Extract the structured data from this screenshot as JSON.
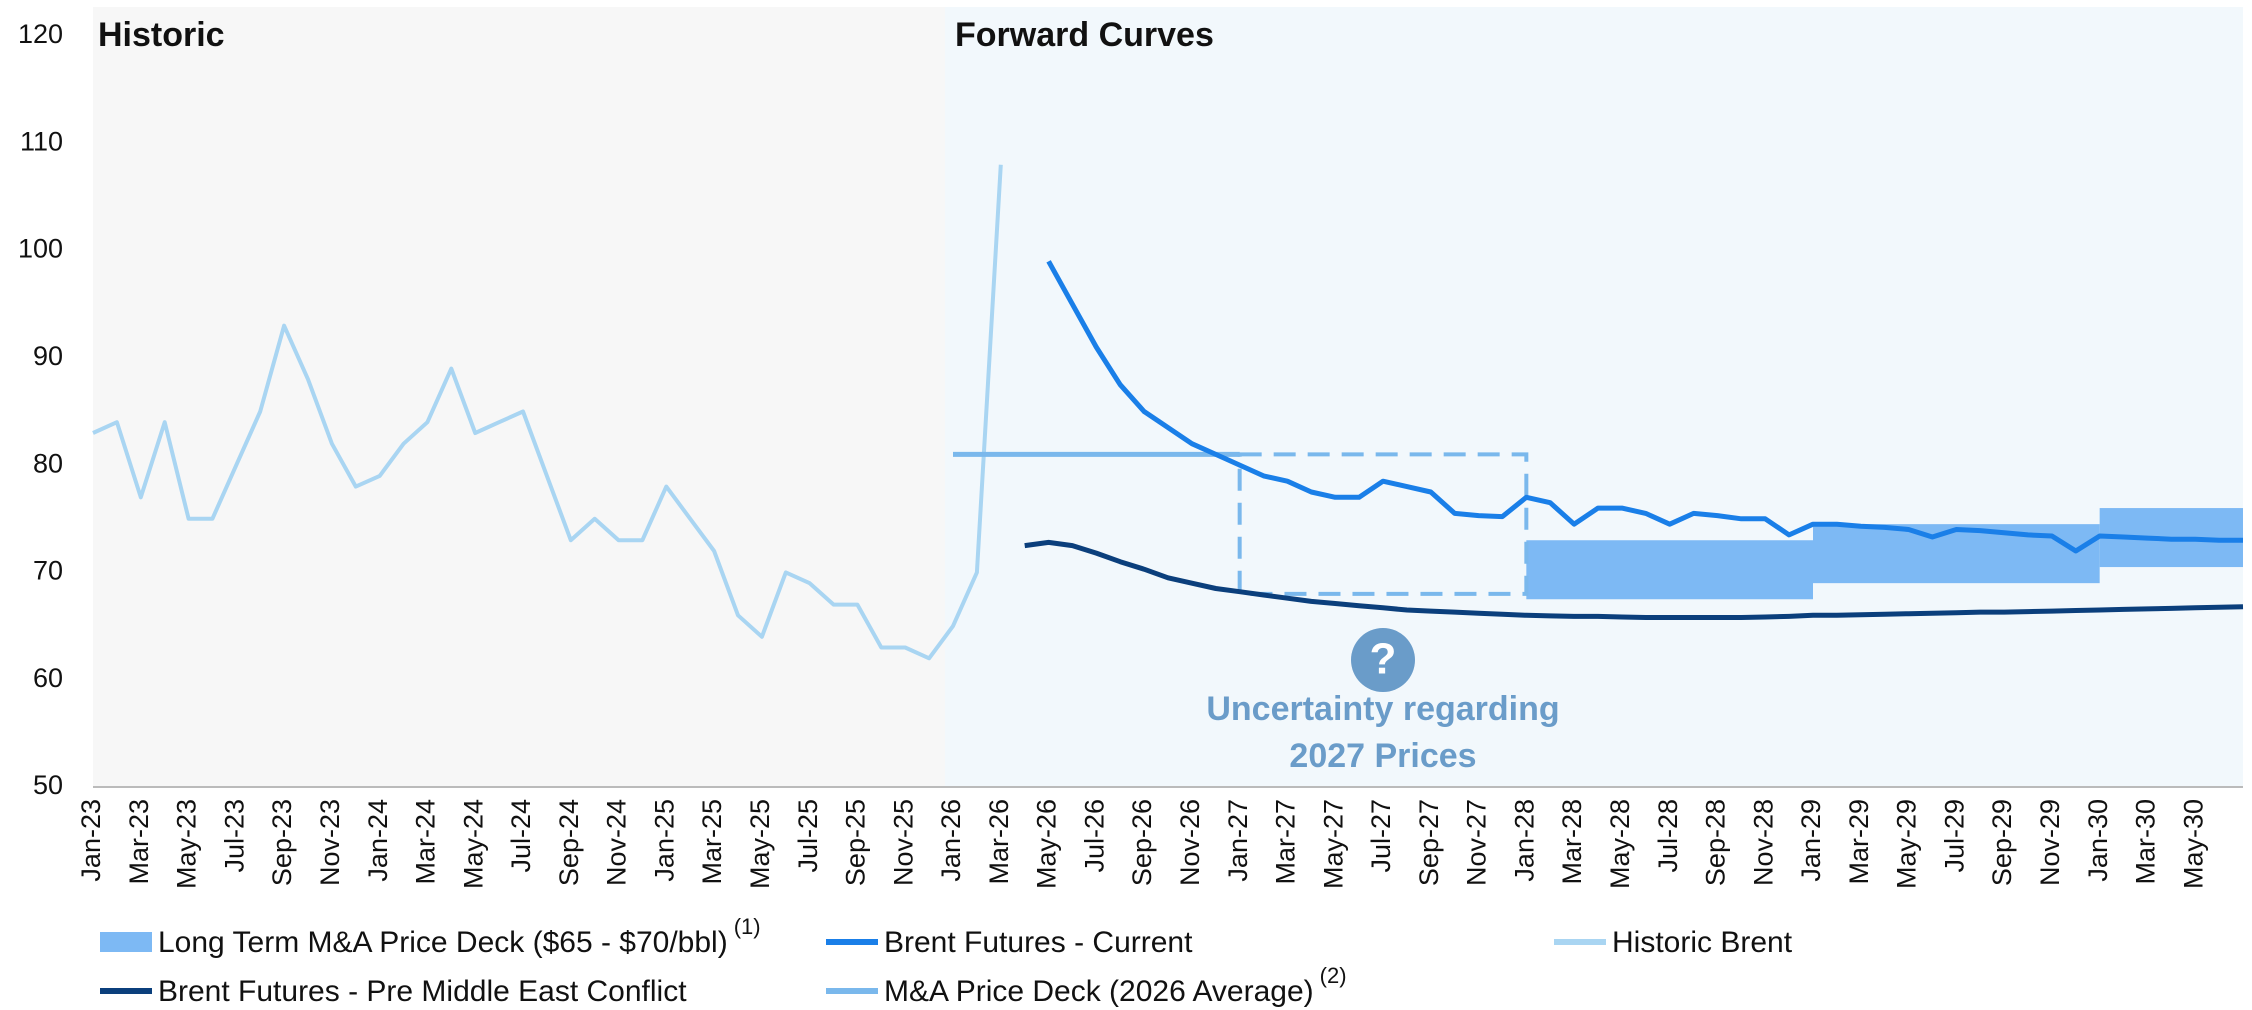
{
  "chart_data": {
    "type": "line",
    "categories": [
      "Jan-23",
      null,
      "Mar-23",
      null,
      "May-23",
      null,
      "Jul-23",
      null,
      "Sep-23",
      null,
      "Nov-23",
      null,
      "Jan-24",
      null,
      "Mar-24",
      null,
      "May-24",
      null,
      "Jul-24",
      null,
      "Sep-24",
      null,
      "Nov-24",
      null,
      "Jan-25",
      null,
      "Mar-25",
      null,
      "May-25",
      null,
      "Jul-25",
      null,
      "Sep-25",
      null,
      "Nov-25",
      null,
      "Jan-26",
      null,
      "Mar-26",
      null,
      "May-26",
      null,
      "Jul-26",
      null,
      "Sep-26",
      null,
      "Nov-26",
      null,
      "Jan-27",
      null,
      "Mar-27",
      null,
      "May-27",
      null,
      "Jul-27",
      null,
      "Sep-27",
      null,
      "Nov-27",
      null,
      "Jan-28",
      null,
      "Mar-28",
      null,
      "May-28",
      null,
      "Jul-28",
      null,
      "Sep-28",
      null,
      "Nov-28",
      null,
      "Jan-29",
      null,
      "Mar-29",
      null,
      "May-29",
      null,
      "Jul-29",
      null,
      "Sep-29",
      null,
      "Nov-29",
      null,
      "Jan-30",
      null,
      "Mar-30",
      null,
      "May-30",
      null,
      null
    ],
    "ylim": [
      50,
      120
    ],
    "yticks": [
      50,
      60,
      70,
      80,
      90,
      100,
      110,
      120
    ],
    "grid": false,
    "panels": [
      "Historic",
      "Forward Curves"
    ],
    "bands": {
      "name": "Long Term M&A Price Deck ($65 - $70/bbl)",
      "note": "(1)",
      "color": "#7db9f4",
      "items": [
        {
          "from": "Jan-28",
          "to": "Jan-29",
          "low": 67.5,
          "high": 73
        },
        {
          "from": "Jan-29",
          "to": "Jan-30",
          "low": 69,
          "high": 74.5
        },
        {
          "from": "Jan-30",
          "low": 70.5,
          "high": 76
        }
      ]
    },
    "series": [
      {
        "name": "Brent Futures - Current",
        "color": "#1a7fe8",
        "values": [
          null,
          null,
          null,
          null,
          null,
          null,
          null,
          null,
          null,
          null,
          null,
          null,
          null,
          null,
          null,
          null,
          null,
          null,
          null,
          null,
          null,
          null,
          null,
          null,
          null,
          null,
          null,
          null,
          null,
          null,
          null,
          null,
          null,
          null,
          null,
          null,
          null,
          null,
          null,
          null,
          99,
          95,
          91,
          87.5,
          85,
          83.5,
          82,
          81,
          80,
          79,
          78.5,
          77.5,
          77,
          77,
          78.5,
          78,
          77.5,
          75.5,
          75.3,
          75.2,
          77,
          76.5,
          74.5,
          76,
          76,
          75.5,
          74.5,
          75.5,
          75.3,
          75,
          75,
          73.5,
          74.5,
          74.5,
          74.3,
          74.2,
          74,
          73.3,
          74,
          73.9,
          73.7,
          73.5,
          73.4,
          72,
          73.4,
          73.3,
          73.2,
          73.1,
          73.1,
          73,
          73
        ]
      },
      {
        "name": "Historic Brent",
        "color": "#a9d5f2",
        "values": [
          83,
          84,
          77,
          84,
          75,
          75,
          80,
          85,
          93,
          88,
          82,
          78,
          79,
          82,
          84,
          89,
          83,
          84,
          85,
          79,
          73,
          75,
          73,
          73,
          78,
          75,
          72,
          66,
          64,
          70,
          69,
          67,
          67,
          63,
          63,
          62,
          65,
          70,
          108,
          null,
          null,
          null,
          null,
          null,
          null,
          null,
          null,
          null,
          null,
          null,
          null,
          null,
          null,
          null,
          null,
          null,
          null,
          null,
          null,
          null,
          null,
          null,
          null,
          null,
          null,
          null,
          null,
          null,
          null,
          null,
          null,
          null,
          null,
          null,
          null,
          null,
          null,
          null,
          null,
          null,
          null,
          null,
          null,
          null,
          null,
          null,
          null,
          null,
          null,
          null,
          null
        ]
      },
      {
        "name": "Brent Futures - Pre Middle East Conflict",
        "color": "#0b3f7c",
        "values": [
          null,
          null,
          null,
          null,
          null,
          null,
          null,
          null,
          null,
          null,
          null,
          null,
          null,
          null,
          null,
          null,
          null,
          null,
          null,
          null,
          null,
          null,
          null,
          null,
          null,
          null,
          null,
          null,
          null,
          null,
          null,
          null,
          null,
          null,
          null,
          null,
          null,
          null,
          null,
          72.5,
          72.8,
          72.5,
          71.8,
          71,
          70.3,
          69.5,
          69,
          68.5,
          68.2,
          67.9,
          67.6,
          67.3,
          67.1,
          66.9,
          66.7,
          66.5,
          66.4,
          66.3,
          66.2,
          66.1,
          66,
          65.95,
          65.9,
          65.9,
          65.85,
          65.8,
          65.8,
          65.8,
          65.8,
          65.8,
          65.85,
          65.9,
          66,
          66,
          66.05,
          66.1,
          66.15,
          66.2,
          66.25,
          66.3,
          66.3,
          66.35,
          66.4,
          66.45,
          66.5,
          66.55,
          66.6,
          66.65,
          66.7,
          66.75,
          66.8
        ]
      },
      {
        "name": "M&A Price Deck (2026 Average)",
        "note": "(2)",
        "color": "#7ab8ec",
        "values": [
          null,
          null,
          null,
          null,
          null,
          null,
          null,
          null,
          null,
          null,
          null,
          null,
          null,
          null,
          null,
          null,
          null,
          null,
          null,
          null,
          null,
          null,
          null,
          null,
          null,
          null,
          null,
          null,
          null,
          null,
          null,
          null,
          null,
          null,
          null,
          null,
          81,
          81,
          81,
          81,
          81,
          81,
          81,
          81,
          81,
          81,
          81,
          81,
          81,
          null,
          null,
          null,
          null,
          null,
          null,
          null,
          null,
          null,
          null,
          null,
          null,
          null,
          null,
          null,
          null,
          null,
          null,
          null,
          null,
          null,
          null,
          null,
          null,
          null,
          null,
          null,
          null,
          null,
          null,
          null,
          null,
          null,
          null,
          null,
          null,
          null,
          null,
          null,
          null,
          null,
          null
        ]
      }
    ],
    "annotation": {
      "icon": "?",
      "text": [
        "Uncertainty regarding",
        "2027 Prices"
      ],
      "from": "Jan-27",
      "to": "Jan-28",
      "ylim": [
        68,
        81
      ],
      "color": "#6a9cc9"
    }
  }
}
